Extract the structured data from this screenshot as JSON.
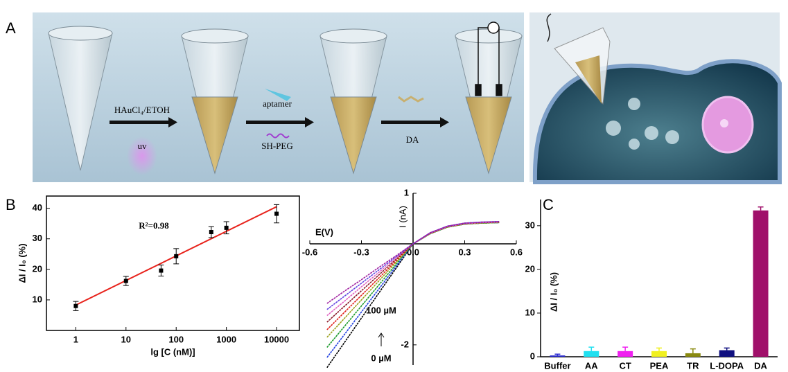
{
  "figure": {
    "panel_labels": [
      "A",
      "B",
      "C"
    ],
    "schematic": {
      "reagent": "HAuCl₄/ETOH",
      "light": "uv",
      "probe": "aptamer",
      "blocker": "SH-PEG",
      "analyte": "DA"
    }
  },
  "chart_data": [
    {
      "type": "scatter",
      "xscale": "log",
      "xlabel": "lg [C (nM)]",
      "ylabel": "ΔI / I₀ (%)",
      "annotation": "R²=0.98",
      "x": [
        1,
        10,
        50,
        100,
        500,
        1000,
        10000
      ],
      "series": [
        {
          "color": "#000000",
          "values": [
            8.0,
            16.2,
            19.6,
            24.3,
            32.2,
            33.6,
            38.2
          ],
          "errors": [
            1.5,
            1.5,
            1.8,
            2.5,
            1.8,
            2.0,
            3.0
          ]
        }
      ],
      "fit": {
        "color": "#e8231c",
        "x": [
          1,
          10000
        ],
        "values": [
          8.3,
          40.5
        ]
      },
      "xlim": [
        0.26,
        28500
      ],
      "ylim": [
        0,
        44
      ],
      "xticks": [
        1,
        10,
        100,
        1000,
        10000
      ],
      "yticks": [
        10,
        20,
        30,
        40
      ]
    },
    {
      "type": "line",
      "xlabel": "E(V)",
      "ylabel": "I (nA)",
      "annotations": [
        "100 µM",
        "0 µM"
      ],
      "x": [
        -0.5,
        -0.4,
        -0.3,
        -0.2,
        -0.1,
        0,
        0.1,
        0.2,
        0.3,
        0.4,
        0.5
      ],
      "series": [
        {
          "color": "#000000",
          "values": [
            -2.45,
            -1.96,
            -1.47,
            -0.98,
            -0.49,
            0,
            0.2,
            0.33,
            0.39,
            0.41,
            0.42
          ]
        },
        {
          "color": "#1f3fe0",
          "values": [
            -2.25,
            -1.8,
            -1.35,
            -0.9,
            -0.45,
            0,
            0.2,
            0.33,
            0.39,
            0.41,
            0.42
          ]
        },
        {
          "color": "#1a9a2a",
          "values": [
            -2.05,
            -1.64,
            -1.23,
            -0.82,
            -0.41,
            0,
            0.2,
            0.33,
            0.39,
            0.41,
            0.42
          ]
        },
        {
          "color": "#9aa01a",
          "values": [
            -1.85,
            -1.48,
            -1.11,
            -0.74,
            -0.37,
            0,
            0.2,
            0.33,
            0.39,
            0.41,
            0.42
          ]
        },
        {
          "color": "#e0201a",
          "values": [
            -1.7,
            -1.36,
            -1.02,
            -0.68,
            -0.34,
            0,
            0.21,
            0.34,
            0.4,
            0.42,
            0.43
          ]
        },
        {
          "color": "#8a1a2a",
          "values": [
            -1.55,
            -1.24,
            -0.93,
            -0.62,
            -0.31,
            0,
            0.21,
            0.34,
            0.4,
            0.42,
            0.43
          ]
        },
        {
          "color": "#e060c0",
          "values": [
            -1.42,
            -1.14,
            -0.85,
            -0.57,
            -0.28,
            0,
            0.21,
            0.34,
            0.4,
            0.42,
            0.43
          ]
        },
        {
          "color": "#6040e0",
          "values": [
            -1.3,
            -1.04,
            -0.78,
            -0.52,
            -0.26,
            0,
            0.22,
            0.35,
            0.41,
            0.43,
            0.44
          ]
        },
        {
          "color": "#a020a0",
          "values": [
            -1.18,
            -0.94,
            -0.71,
            -0.47,
            -0.24,
            0,
            0.22,
            0.35,
            0.41,
            0.43,
            0.44
          ]
        }
      ],
      "xlim": [
        -0.6,
        0.6
      ],
      "ylim": [
        -2.4,
        1
      ],
      "xticks": [
        -0.6,
        -0.3,
        {
          "value": 0,
          "label": "0.0"
        },
        0.3,
        0.6
      ],
      "yticks": [
        -2,
        1
      ]
    },
    {
      "type": "bar",
      "ylabel": "ΔI / I₀ (%)",
      "categories": [
        "Buffer",
        "AA",
        "CT",
        "PEA",
        "TR",
        "L-DOPA",
        "DA"
      ],
      "values": [
        0.3,
        1.3,
        1.3,
        1.3,
        0.8,
        1.5,
        33.5
      ],
      "errors": [
        0.3,
        0.9,
        0.9,
        0.7,
        1.0,
        0.5,
        0.8
      ],
      "colors": [
        "#2a2ad0",
        "#20e0f0",
        "#f020f0",
        "#f0f020",
        "#8a8a10",
        "#101080",
        "#a0106a"
      ],
      "ylim": [
        0,
        36
      ],
      "yticks": [
        0,
        10,
        20,
        30
      ]
    }
  ]
}
